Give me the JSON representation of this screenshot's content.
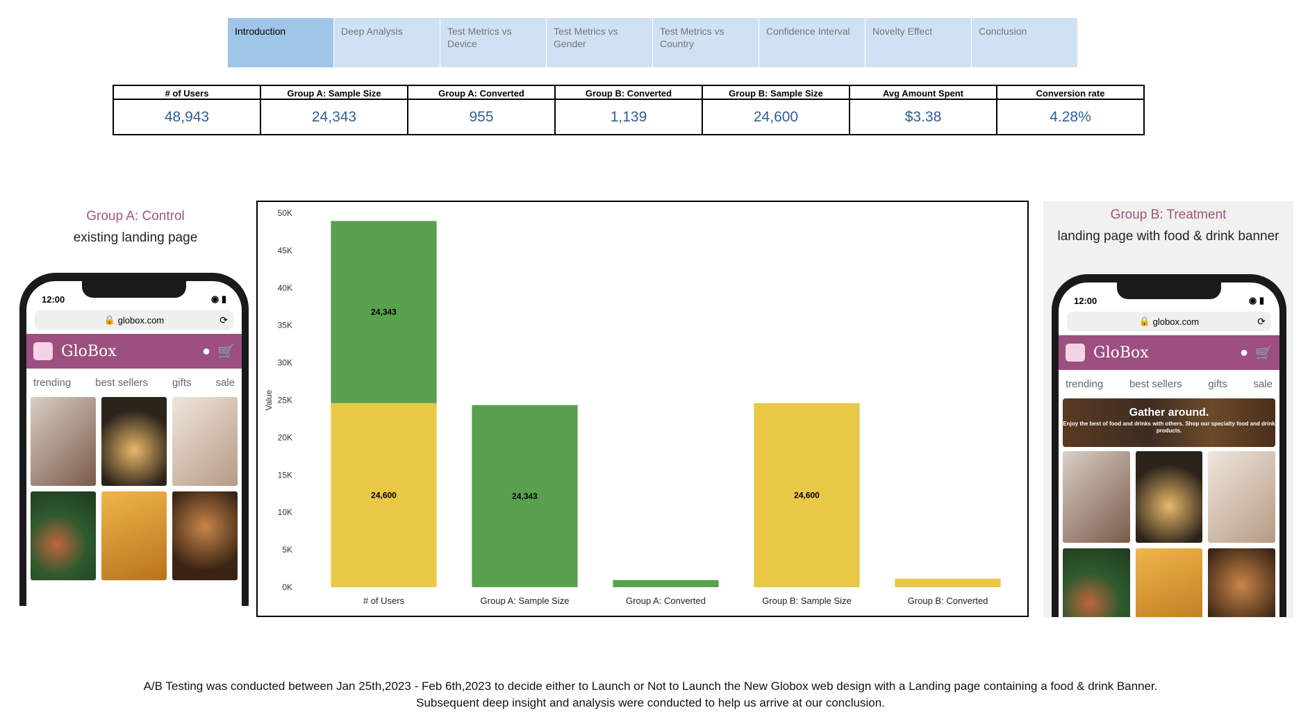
{
  "tabs": [
    {
      "label": "Introduction",
      "active": true
    },
    {
      "label": "Deep Analysis",
      "active": false
    },
    {
      "label": "Test Metrics vs Device",
      "active": false
    },
    {
      "label": "Test Metrics vs Gender",
      "active": false
    },
    {
      "label": "Test Metrics vs Country",
      "active": false
    },
    {
      "label": "Confidence Interval",
      "active": false
    },
    {
      "label": "Novelty Effect",
      "active": false
    },
    {
      "label": "Conclusion",
      "active": false
    }
  ],
  "kpi": {
    "headers": [
      "# of Users",
      "Group A: Sample Size",
      "Group A: Converted",
      "Group B: Converted",
      "Group B: Sample Size",
      "Avg Amount Spent",
      "Conversion rate"
    ],
    "values": [
      "48,943",
      "24,343",
      "955",
      "1,139",
      "24,600",
      "$3.38",
      "4.28%"
    ]
  },
  "groupA": {
    "title": "Group A: Control",
    "subtitle": "existing landing page",
    "phone": {
      "time": "12:00",
      "url": "globox.com",
      "brand": "GloBox",
      "nav": [
        "trending",
        "best sellers",
        "gifts",
        "sale"
      ]
    }
  },
  "groupB": {
    "title": "Group B: Treatment",
    "subtitle": "landing page with food & drink banner",
    "phone": {
      "time": "12:00",
      "url": "globox.com",
      "brand": "GloBox",
      "nav": [
        "trending",
        "best sellers",
        "gifts",
        "sale"
      ],
      "banner_title": "Gather around.",
      "banner_text": "Enjoy the best of food and drinks with others. Shop our specialty food and drink products."
    }
  },
  "chart_data": {
    "type": "bar",
    "stacked": true,
    "ylabel": "Value",
    "xlabel": "",
    "ylim": [
      0,
      50000
    ],
    "yticks": [
      "0K",
      "5K",
      "10K",
      "15K",
      "20K",
      "25K",
      "30K",
      "35K",
      "40K",
      "45K",
      "50K"
    ],
    "categories": [
      "# of Users",
      "Group A: Sample Size",
      "Group A: Converted",
      "Group B: Sample Size",
      "Group B: Converted"
    ],
    "series": [
      {
        "values": [
          24600,
          0,
          0,
          24600,
          1139
        ],
        "color": "#e9c846",
        "labels": [
          "24,600",
          "",
          "",
          "24,600",
          ""
        ]
      },
      {
        "values": [
          24343,
          24343,
          955,
          0,
          0
        ],
        "color": "#59a14f",
        "labels": [
          "24,343",
          "24,343",
          "",
          "",
          ""
        ]
      }
    ],
    "grid": false
  },
  "footer": {
    "line1": "A/B Testing was conducted between Jan 25th,2023 - Feb 6th,2023 to decide either to Launch or Not to Launch the New Globox web design with a Landing page containing a food & drink Banner.",
    "line2": "Subsequent deep insight and analysis were conducted to help us arrive at our conclusion."
  }
}
